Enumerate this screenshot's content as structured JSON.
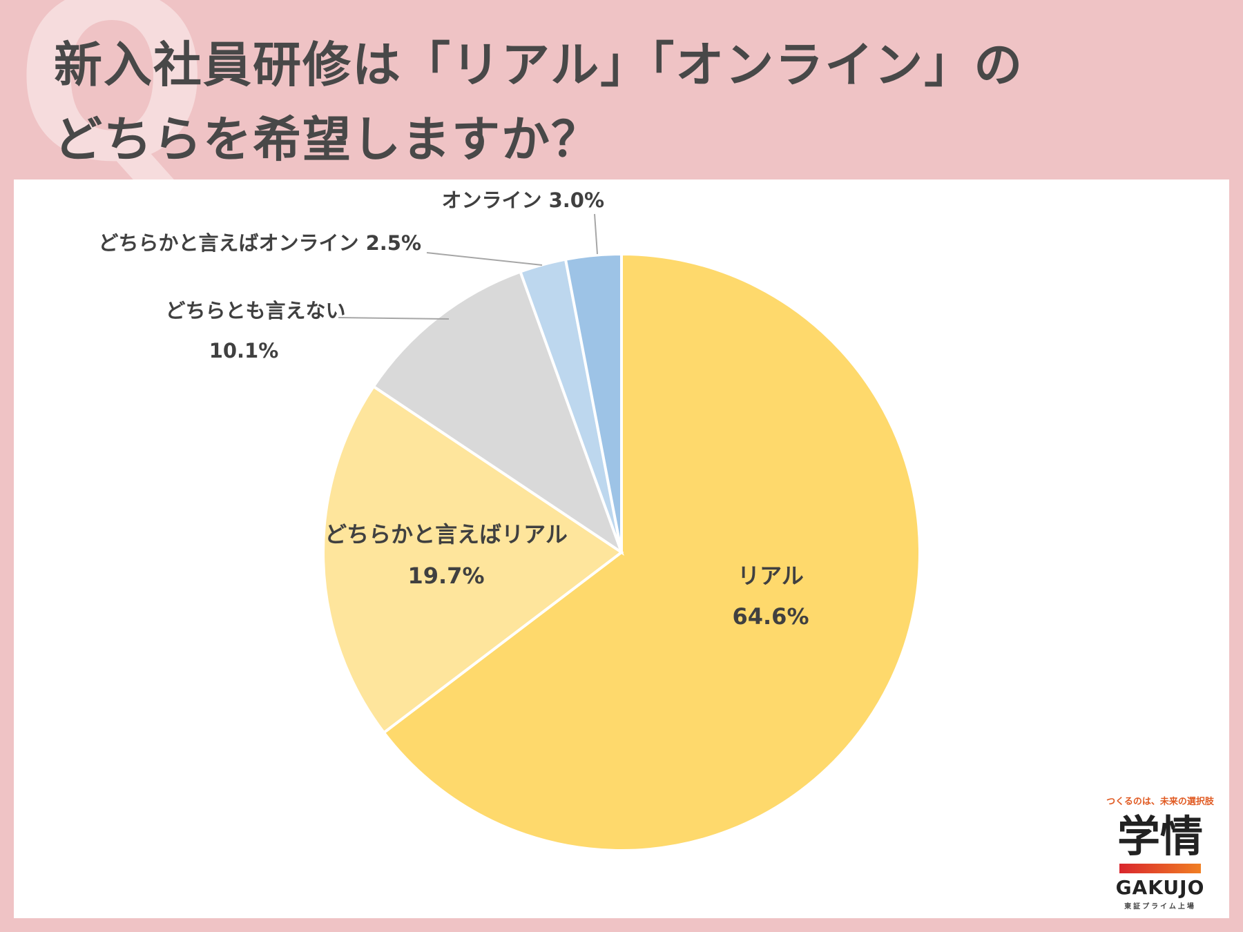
{
  "header": {
    "q_mark": "Q",
    "title_line1": "新入社員研修は「リアル」「オンライン」の",
    "title_line2": "どちらを希望しますか？"
  },
  "chart_data": {
    "type": "pie",
    "title": "新入社員研修は「リアル」「オンライン」のどちらを希望しますか？",
    "start": "12 o'clock, clockwise",
    "slices": [
      {
        "name": "リアル",
        "value": 64.6,
        "value_label": "64.6%",
        "color": "#fed96c"
      },
      {
        "name": "どちらかと言えばリアル",
        "value": 19.7,
        "value_label": "19.7%",
        "color": "#fee59c"
      },
      {
        "name": "どちらとも言えない",
        "value": 10.1,
        "value_label": "10.1%",
        "color": "#d9d9d9"
      },
      {
        "name": "どちらかと言えばオンライン",
        "value": 2.5,
        "value_label": "2.5%",
        "color": "#bdd7ee"
      },
      {
        "name": "オンライン",
        "value": 3.0,
        "value_label": "3.0%",
        "color": "#9dc3e6"
      }
    ]
  },
  "logo": {
    "tagline": "つくるのは、未来の選択肢",
    "kanji": "学情",
    "english": "GAKUJO",
    "listing": "東証プライム上場"
  }
}
